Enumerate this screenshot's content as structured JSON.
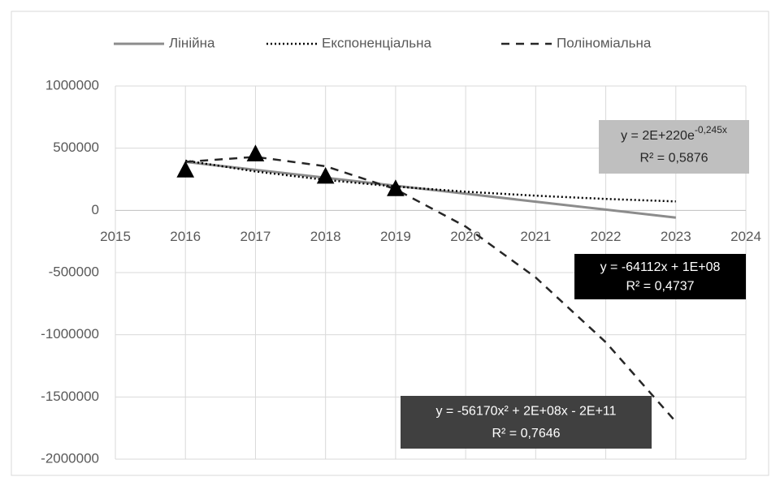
{
  "chart_data": {
    "type": "line",
    "xlim": [
      2015,
      2024
    ],
    "xticks": [
      2015,
      2016,
      2017,
      2018,
      2019,
      2020,
      2021,
      2022,
      2023,
      2024
    ],
    "ylim": [
      -2000000,
      1000000
    ],
    "yticks": [
      1000000,
      500000,
      0,
      -500000,
      -1000000,
      -1500000,
      -2000000
    ],
    "grid": true,
    "legend": "top",
    "points": {
      "x": [
        2016,
        2017,
        2018,
        2019
      ],
      "values": [
        320000,
        450000,
        270000,
        170000
      ],
      "color": "#000000"
    },
    "series": [
      {
        "name": "Лінійна",
        "color": "#8c8c8c",
        "style": "solid",
        "x": [
          2016,
          2017,
          2018,
          2019,
          2020,
          2021,
          2022,
          2023
        ],
        "values": [
          390000,
          326000,
          262000,
          198000,
          134000,
          70000,
          6000,
          -58000
        ]
      },
      {
        "name": "Експоненціальна",
        "color": "#000000",
        "style": "dotted",
        "x": [
          2016,
          2017,
          2018,
          2019,
          2020,
          2021,
          2022,
          2023
        ],
        "values": [
          400000,
          313000,
          245000,
          192000,
          150000,
          118000,
          92000,
          72000
        ]
      },
      {
        "name": "Поліноміальна",
        "color": "#262626",
        "style": "dashed",
        "x": [
          2016,
          2017,
          2018,
          2019,
          2020,
          2021,
          2022,
          2023
        ],
        "values": [
          390000,
          430000,
          355000,
          170000,
          -130000,
          -540000,
          -1060000,
          -1700000
        ]
      }
    ],
    "annotations": [
      {
        "equation": "y = 2E+220e",
        "exponent": "-0,245x",
        "r2": "R² = 0,5876",
        "color": "#bfbfbf",
        "text_color": "#262626"
      },
      {
        "equation": "y = -64112x + 1E+08",
        "r2": "R² = 0,4737",
        "color": "#000000",
        "text_color": "#ffffff"
      },
      {
        "equation": "y = -56170x² + 2E+08x - 2E+11",
        "r2": "R² = 0,7646",
        "color": "#404040",
        "text_color": "#ffffff"
      }
    ]
  }
}
